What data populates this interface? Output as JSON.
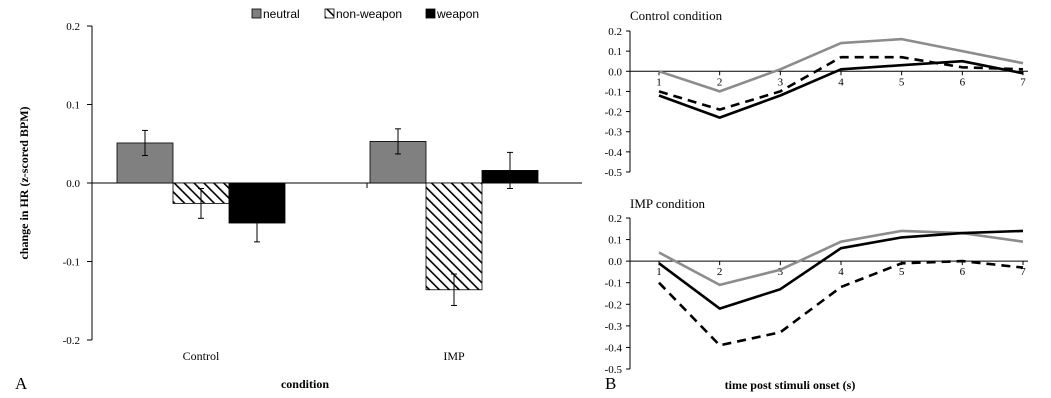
{
  "panels": {
    "a_letter": "A",
    "b_letter": "B"
  },
  "chart_data": [
    {
      "type": "bar",
      "title": "",
      "xlabel": "condition",
      "ylabel": "change in HR (z-scored BPM)",
      "ylim": [
        -0.2,
        0.2
      ],
      "yticks": [
        "0.2",
        "0.1",
        "0.0",
        "-0.1",
        "-0.2"
      ],
      "yticks_values": [
        0.2,
        0.1,
        0.0,
        -0.1,
        -0.2
      ],
      "categories": [
        "Control",
        "IMP"
      ],
      "legend_position": "top",
      "series": [
        {
          "name": "neutral",
          "values": [
            0.051,
            0.053
          ],
          "errors": [
            0.016,
            0.016
          ],
          "fill": "gray",
          "color": "#808080"
        },
        {
          "name": "non-weapon",
          "values": [
            -0.026,
            -0.136
          ],
          "errors": [
            0.019,
            0.02
          ],
          "fill": "hatch",
          "color": "#000000"
        },
        {
          "name": "weapon",
          "values": [
            -0.051,
            0.016
          ],
          "errors": [
            0.024,
            0.023
          ],
          "fill": "black",
          "color": "#000000"
        }
      ]
    },
    {
      "type": "line",
      "title": "Control condition",
      "ylim": [
        -0.5,
        0.2
      ],
      "yticks": [
        "0.2",
        "0.1",
        "0.0",
        "-0.1",
        "-0.2",
        "-0.3",
        "-0.4",
        "-0.5"
      ],
      "yticks_values": [
        0.2,
        0.1,
        0.0,
        -0.1,
        -0.2,
        -0.3,
        -0.4,
        -0.5
      ],
      "x": [
        "1",
        "2",
        "3",
        "4",
        "5",
        "6",
        "7"
      ],
      "series": [
        {
          "key": "neutral",
          "values": [
            0.0,
            -0.1,
            0.01,
            0.14,
            0.16,
            0.1,
            0.04
          ],
          "color": "#8c8c8c",
          "dash": "solid"
        },
        {
          "key": "non-weapon",
          "values": [
            -0.1,
            -0.19,
            -0.1,
            0.07,
            0.07,
            0.02,
            0.01
          ],
          "color": "#000000",
          "dash": "dashed"
        },
        {
          "key": "weapon",
          "values": [
            -0.12,
            -0.23,
            -0.12,
            0.01,
            0.03,
            0.05,
            -0.01
          ],
          "color": "#000000",
          "dash": "solid"
        }
      ]
    },
    {
      "type": "line",
      "title": "IMP  condition",
      "xlabel": "time post stimuli onset (s)",
      "ylim": [
        -0.5,
        0.2
      ],
      "yticks": [
        "0.2",
        "0.1",
        "0.0",
        "-0.1",
        "-0.2",
        "-0.3",
        "-0.4",
        "-0.5"
      ],
      "yticks_values": [
        0.2,
        0.1,
        0.0,
        -0.1,
        -0.2,
        -0.3,
        -0.4,
        -0.5
      ],
      "x": [
        "1",
        "2",
        "3",
        "4",
        "5",
        "6",
        "7"
      ],
      "series": [
        {
          "key": "neutral",
          "values": [
            0.04,
            -0.11,
            -0.04,
            0.09,
            0.14,
            0.13,
            0.09
          ],
          "color": "#8c8c8c",
          "dash": "solid"
        },
        {
          "key": "non-weapon",
          "values": [
            -0.1,
            -0.39,
            -0.33,
            -0.12,
            -0.01,
            0.0,
            -0.03
          ],
          "color": "#000000",
          "dash": "dashed"
        },
        {
          "key": "weapon",
          "values": [
            -0.01,
            -0.22,
            -0.13,
            0.06,
            0.11,
            0.13,
            0.14
          ],
          "color": "#000000",
          "dash": "solid"
        }
      ]
    }
  ]
}
